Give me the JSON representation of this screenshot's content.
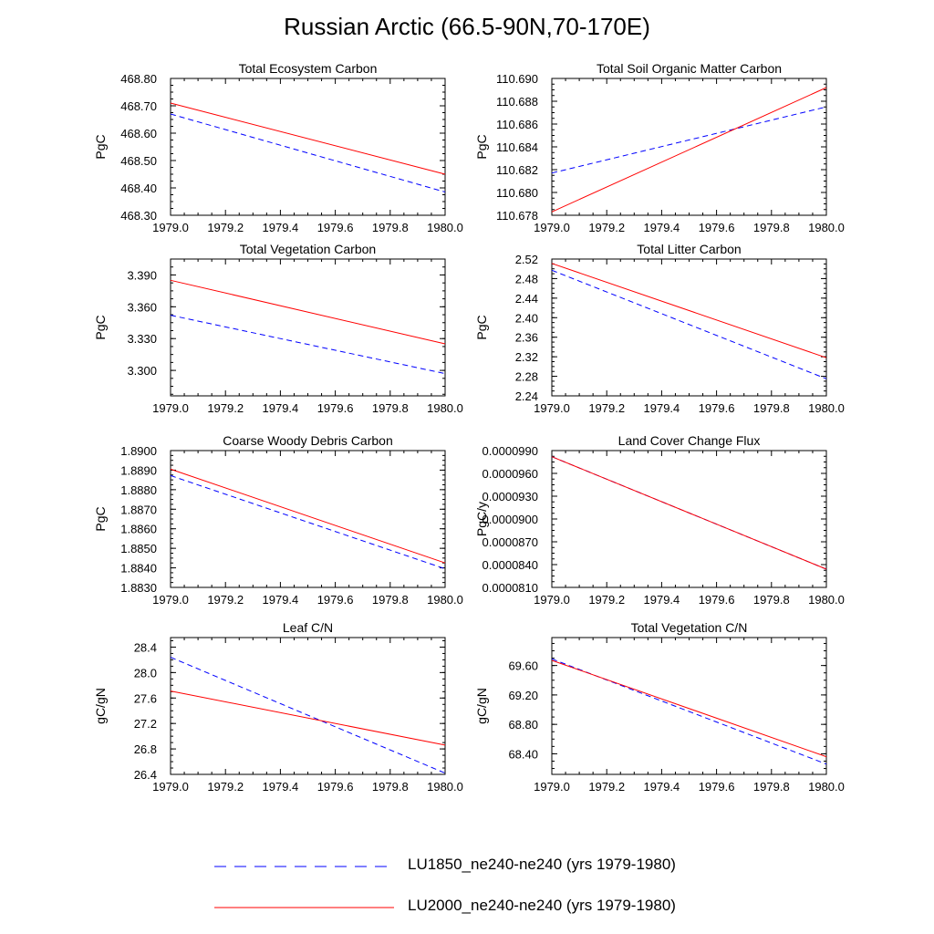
{
  "title": "Russian Arctic (66.5-90N,70-170E)",
  "legend": [
    {
      "label": "LU1850_ne240-ne240 (yrs 1979-1980)",
      "color": "#0000ff",
      "dash": "dashed"
    },
    {
      "label": "LU2000_ne240-ne240 (yrs 1979-1980)",
      "color": "#ff0000",
      "dash": "solid"
    }
  ],
  "chart_data": [
    {
      "type": "line",
      "title": "Total Ecosystem Carbon",
      "xlabel": "",
      "ylabel": "PgC",
      "xlim": [
        1979.0,
        1980.0
      ],
      "ylim": [
        468.3,
        468.8
      ],
      "xticks": [
        "1979.0",
        "1979.2",
        "1979.4",
        "1979.6",
        "1979.8",
        "1980.0"
      ],
      "yticks": [
        "468.30",
        "468.40",
        "468.50",
        "468.60",
        "468.70",
        "468.80"
      ],
      "x": [
        1979.0,
        1980.0
      ],
      "series": [
        {
          "name": "LU1850_ne240-ne240 (yrs 1979-1980)",
          "values": [
            468.67,
            468.385
          ],
          "color": "#0000ff",
          "dash": "dashed"
        },
        {
          "name": "LU2000_ne240-ne240 (yrs 1979-1980)",
          "values": [
            468.71,
            468.45
          ],
          "color": "#ff0000",
          "dash": "solid"
        }
      ]
    },
    {
      "type": "line",
      "title": "Total Soil Organic Matter Carbon",
      "xlabel": "",
      "ylabel": "PgC",
      "xlim": [
        1979.0,
        1980.0
      ],
      "ylim": [
        110.678,
        110.69
      ],
      "xticks": [
        "1979.0",
        "1979.2",
        "1979.4",
        "1979.6",
        "1979.8",
        "1980.0"
      ],
      "yticks": [
        "110.678",
        "110.680",
        "110.682",
        "110.684",
        "110.686",
        "110.688",
        "110.690"
      ],
      "x": [
        1979.0,
        1980.0
      ],
      "series": [
        {
          "name": "LU1850_ne240-ne240 (yrs 1979-1980)",
          "values": [
            110.6817,
            110.6875
          ],
          "color": "#0000ff",
          "dash": "dashed"
        },
        {
          "name": "LU2000_ne240-ne240 (yrs 1979-1980)",
          "values": [
            110.6783,
            110.6892
          ],
          "color": "#ff0000",
          "dash": "solid"
        }
      ]
    },
    {
      "type": "line",
      "title": "Total Vegetation Carbon",
      "xlabel": "",
      "ylabel": "PgC",
      "xlim": [
        1979.0,
        1980.0
      ],
      "ylim": [
        3.276,
        3.405
      ],
      "xticks": [
        "1979.0",
        "1979.2",
        "1979.4",
        "1979.6",
        "1979.8",
        "1980.0"
      ],
      "yticks": [
        "3.300",
        "3.330",
        "3.360",
        "3.390"
      ],
      "ytick_values": [
        3.3,
        3.33,
        3.36,
        3.39
      ],
      "x": [
        1979.0,
        1980.0
      ],
      "series": [
        {
          "name": "LU1850_ne240-ne240 (yrs 1979-1980)",
          "values": [
            3.352,
            3.297
          ],
          "color": "#0000ff",
          "dash": "dashed"
        },
        {
          "name": "LU2000_ne240-ne240 (yrs 1979-1980)",
          "values": [
            3.385,
            3.325
          ],
          "color": "#ff0000",
          "dash": "solid"
        }
      ]
    },
    {
      "type": "line",
      "title": "Total Litter Carbon",
      "xlabel": "",
      "ylabel": "PgC",
      "xlim": [
        1979.0,
        1980.0
      ],
      "ylim": [
        2.24,
        2.52
      ],
      "xticks": [
        "1979.0",
        "1979.2",
        "1979.4",
        "1979.6",
        "1979.8",
        "1980.0"
      ],
      "yticks": [
        "2.24",
        "2.28",
        "2.32",
        "2.36",
        "2.40",
        "2.44",
        "2.48",
        "2.52"
      ],
      "x": [
        1979.0,
        1980.0
      ],
      "series": [
        {
          "name": "LU1850_ne240-ne240 (yrs 1979-1980)",
          "values": [
            2.497,
            2.275
          ],
          "color": "#0000ff",
          "dash": "dashed"
        },
        {
          "name": "LU2000_ne240-ne240 (yrs 1979-1980)",
          "values": [
            2.511,
            2.318
          ],
          "color": "#ff0000",
          "dash": "solid"
        }
      ]
    },
    {
      "type": "line",
      "title": "Coarse Woody Debris Carbon",
      "xlabel": "",
      "ylabel": "PgC",
      "xlim": [
        1979.0,
        1980.0
      ],
      "ylim": [
        1.883,
        1.89
      ],
      "xticks": [
        "1979.0",
        "1979.2",
        "1979.4",
        "1979.6",
        "1979.8",
        "1980.0"
      ],
      "yticks": [
        "1.8830",
        "1.8840",
        "1.8850",
        "1.8860",
        "1.8870",
        "1.8880",
        "1.8890",
        "1.8900"
      ],
      "x": [
        1979.0,
        1980.0
      ],
      "series": [
        {
          "name": "LU1850_ne240-ne240 (yrs 1979-1980)",
          "values": [
            1.88872,
            1.88395
          ],
          "color": "#0000ff",
          "dash": "dashed"
        },
        {
          "name": "LU2000_ne240-ne240 (yrs 1979-1980)",
          "values": [
            1.88905,
            1.88425
          ],
          "color": "#ff0000",
          "dash": "solid"
        }
      ]
    },
    {
      "type": "line",
      "title": "Land Cover Change Flux",
      "xlabel": "",
      "ylabel": "PgC/y",
      "xlim": [
        1979.0,
        1980.0
      ],
      "ylim": [
        8.1e-05,
        9.9e-05
      ],
      "xticks": [
        "1979.0",
        "1979.2",
        "1979.4",
        "1979.6",
        "1979.8",
        "1980.0"
      ],
      "yticks": [
        "0.0000810",
        "0.0000840",
        "0.0000870",
        "0.0000900",
        "0.0000930",
        "0.0000960",
        "0.0000990"
      ],
      "x": [
        1979.0,
        1980.0
      ],
      "series": [
        {
          "name": "LU1850_ne240-ne240 (yrs 1979-1980)",
          "values": [
            9.82e-05,
            8.34e-05
          ],
          "color": "#0000ff",
          "dash": "dashed"
        },
        {
          "name": "LU2000_ne240-ne240 (yrs 1979-1980)",
          "values": [
            9.82e-05,
            8.34e-05
          ],
          "color": "#ff0000",
          "dash": "solid"
        }
      ]
    },
    {
      "type": "line",
      "title": "Leaf C/N",
      "xlabel": "",
      "ylabel": "gC/gN",
      "xlim": [
        1979.0,
        1980.0
      ],
      "ylim": [
        26.4,
        28.55
      ],
      "xticks": [
        "1979.0",
        "1979.2",
        "1979.4",
        "1979.6",
        "1979.8",
        "1980.0"
      ],
      "yticks": [
        "26.4",
        "26.8",
        "27.2",
        "27.6",
        "28.0",
        "28.4"
      ],
      "ytick_values": [
        26.4,
        26.8,
        27.2,
        27.6,
        28.0,
        28.4
      ],
      "x": [
        1979.0,
        1980.0
      ],
      "series": [
        {
          "name": "LU1850_ne240-ne240 (yrs 1979-1980)",
          "values": [
            28.24,
            26.42
          ],
          "color": "#0000ff",
          "dash": "dashed"
        },
        {
          "name": "LU2000_ne240-ne240 (yrs 1979-1980)",
          "values": [
            27.71,
            26.86
          ],
          "color": "#ff0000",
          "dash": "solid"
        }
      ]
    },
    {
      "type": "line",
      "title": "Total Vegetation C/N",
      "xlabel": "",
      "ylabel": "gC/gN",
      "xlim": [
        1979.0,
        1980.0
      ],
      "ylim": [
        68.12,
        69.98
      ],
      "xticks": [
        "1979.0",
        "1979.2",
        "1979.4",
        "1979.6",
        "1979.8",
        "1980.0"
      ],
      "yticks": [
        "68.40",
        "68.80",
        "69.20",
        "69.60"
      ],
      "ytick_values": [
        68.4,
        68.8,
        69.2,
        69.6
      ],
      "x": [
        1979.0,
        1980.0
      ],
      "series": [
        {
          "name": "LU1850_ne240-ne240 (yrs 1979-1980)",
          "values": [
            69.69,
            68.26
          ],
          "color": "#0000ff",
          "dash": "dashed"
        },
        {
          "name": "LU2000_ne240-ne240 (yrs 1979-1980)",
          "values": [
            69.67,
            68.36
          ],
          "color": "#ff0000",
          "dash": "solid"
        }
      ]
    }
  ]
}
